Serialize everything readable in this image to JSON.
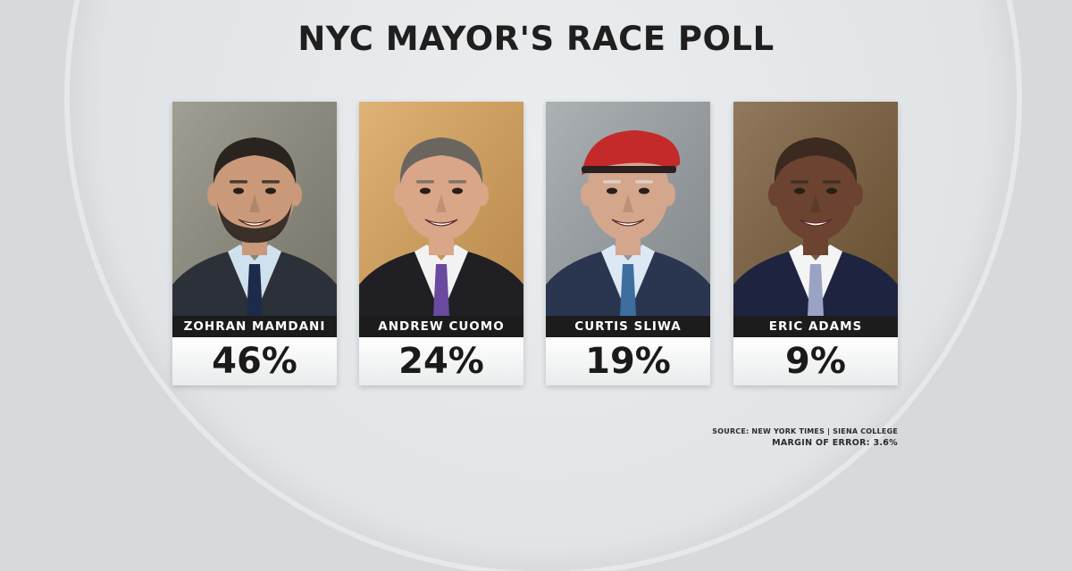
{
  "title": "NYC MAYOR'S RACE POLL",
  "source": "SOURCE: NEW YORK TIMES | SIENA COLLEGE",
  "margin": "MARGIN OF ERROR: 3.6%",
  "chart_data": {
    "type": "bar",
    "title": "NYC MAYOR'S RACE POLL",
    "categories": [
      "ZOHRAN MAMDANI",
      "ANDREW CUOMO",
      "CURTIS SLIWA",
      "ERIC ADAMS"
    ],
    "values": [
      46,
      24,
      19,
      9
    ],
    "value_labels": [
      "46%",
      "24%",
      "19%",
      "9%"
    ]
  },
  "candidates": [
    {
      "name": "ZOHRAN MAMDANI",
      "pct": "46%",
      "bg": "#8c8a7c",
      "skin": "#c9997a",
      "hair": "#2a2420",
      "suit": "#2c3038",
      "shirt": "#cfe0ef",
      "tie": "#1d2b4a",
      "beard": true,
      "hat": false
    },
    {
      "name": "ANDREW CUOMO",
      "pct": "24%",
      "bg": "#d9a258",
      "skin": "#d9a688",
      "hair": "#6b6560",
      "suit": "#1f1f24",
      "shirt": "#f2f2f2",
      "tie": "#6a4a9e",
      "beard": false,
      "hat": false
    },
    {
      "name": "CURTIS SLIWA",
      "pct": "19%",
      "bg": "#9aa0a4",
      "skin": "#d4a68c",
      "hair": "#d8d8d8",
      "suit": "#2a3550",
      "shirt": "#dce8f4",
      "tie": "#3d6e9e",
      "beard": false,
      "hat": true,
      "hat_color": "#c42a2a"
    },
    {
      "name": "ERIC ADAMS",
      "pct": "9%",
      "bg": "#7a5c3a",
      "skin": "#6b4330",
      "hair": "#3a2a20",
      "suit": "#1e2440",
      "shirt": "#f4f4f4",
      "tie": "#9aa3c4",
      "beard": false,
      "hat": false
    }
  ]
}
